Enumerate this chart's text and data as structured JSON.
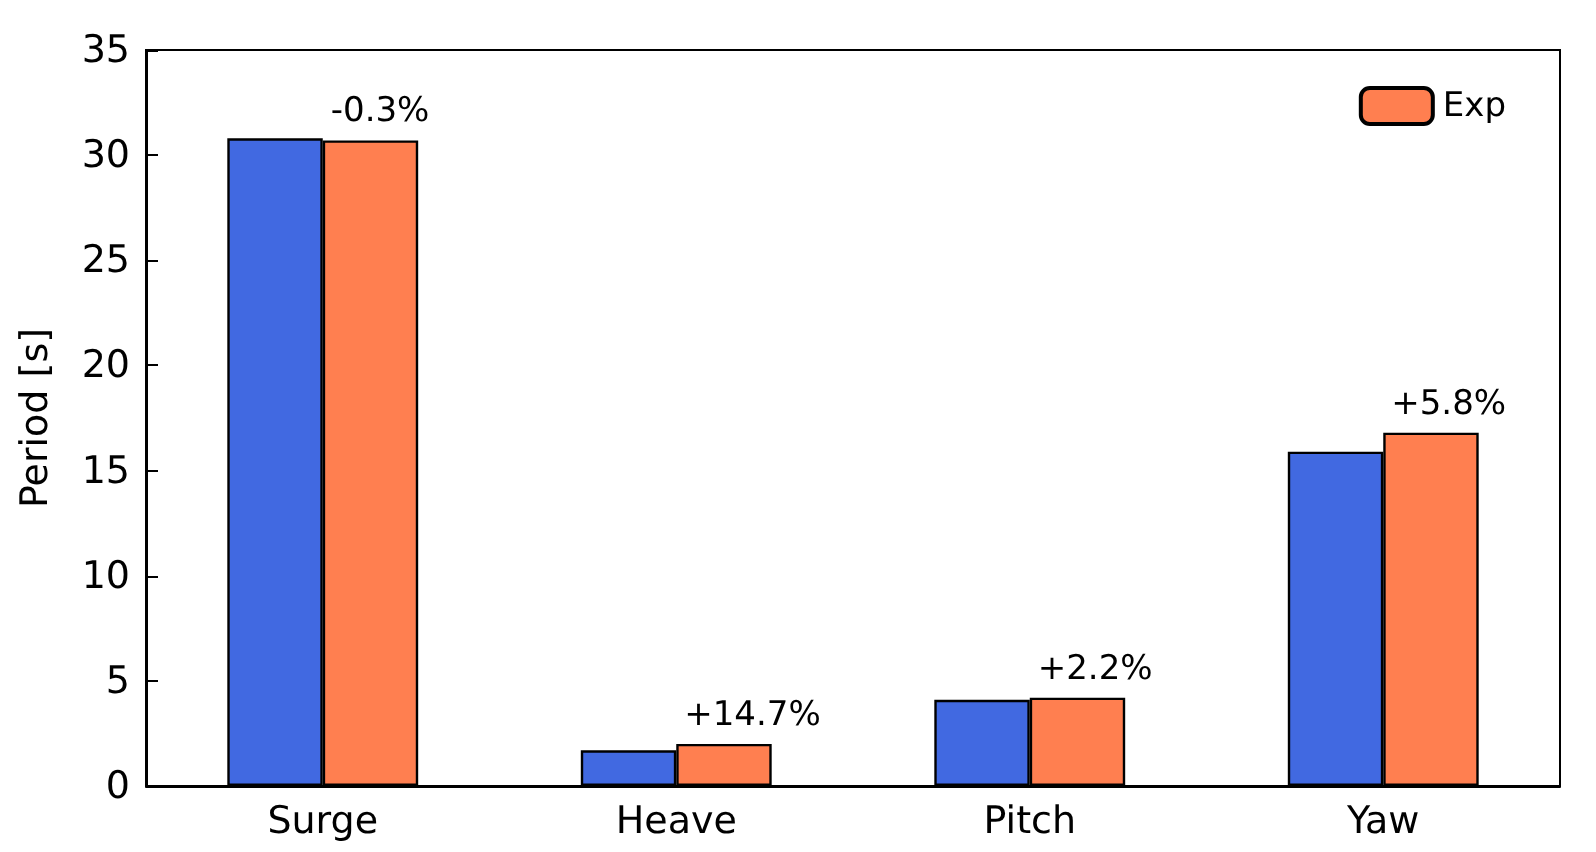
{
  "chart_data": {
    "type": "bar",
    "ylabel": "Period [s]",
    "categories": [
      "Surge",
      "Heave",
      "Pitch",
      "Yaw"
    ],
    "series": [
      {
        "color": "#4169e1",
        "values": [
          30.8,
          1.7,
          4.1,
          15.9
        ]
      },
      {
        "name": "Exp",
        "color": "#ff7f50",
        "values": [
          30.7,
          2.0,
          4.2,
          16.8
        ]
      }
    ],
    "annotations": [
      {
        "text": "-0.3%",
        "x": "Surge",
        "y": 30.7
      },
      {
        "text": "+14.7%",
        "x": "Heave",
        "y": 2.0
      },
      {
        "text": "+2.2%",
        "x": "Pitch",
        "y": 4.2
      },
      {
        "text": "+5.8%",
        "x": "Yaw",
        "y": 16.8
      }
    ],
    "ylim": [
      0,
      35
    ],
    "yticks": [
      0,
      5,
      10,
      15,
      20,
      25,
      30,
      35
    ],
    "grid": false,
    "legend": "top right"
  }
}
